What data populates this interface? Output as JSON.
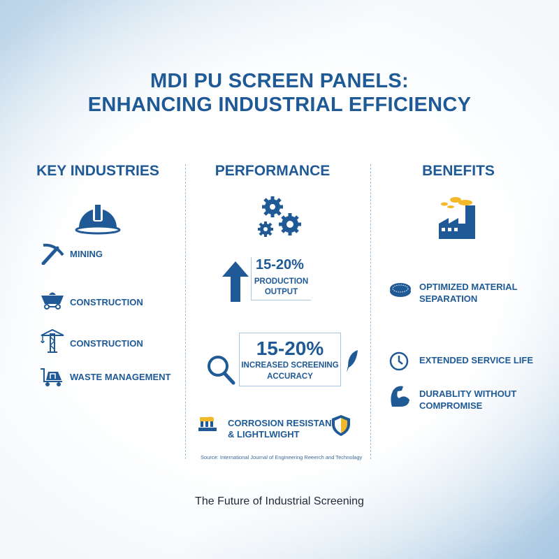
{
  "title": {
    "line1": "MDI PU SCREEN PANELS:",
    "line2": "ENHANCING INDUSTRIAL EFFICIENCY"
  },
  "colors": {
    "primary": "#1f5a96",
    "accent": "#f2b829"
  },
  "columns": {
    "industries": {
      "heading": "KEY INDUSTRIES",
      "header_icon": "hard-hat-icon",
      "items": [
        {
          "label": "MINING",
          "icon": "pickaxe-icon"
        },
        {
          "label": "CONSTRUCTION",
          "icon": "mine-cart-icon"
        },
        {
          "label": "CONSTRUCTION",
          "icon": "crane-icon"
        },
        {
          "label": "WASTE MANAGEMENT",
          "icon": "waste-cart-icon"
        }
      ]
    },
    "performance": {
      "heading": "PERFORMANCE",
      "header_icon": "gears-icon",
      "stat1": {
        "value": "15-20%",
        "line1": "PRODUCTION",
        "line2": "OUTPUT",
        "icon": "arrow-up-icon"
      },
      "stat2": {
        "value": "15-20%",
        "line1": "INCREASED SCREENING",
        "line2": "ACCURACY",
        "icon": "magnifier-icon",
        "side_icon": "feather-icon"
      },
      "feature": {
        "line1": "CORROSION RESISTANT",
        "line2": "& LIGHTLWIGHT",
        "icon": "panel-icon",
        "side_icon": "shield-icon"
      },
      "source": "Source: International Journal of Engineering Reeerch and Technolagy"
    },
    "benefits": {
      "heading": "BENEFITS",
      "header_icon": "factory-icon",
      "items": [
        {
          "line1": "OPTIMIZED MATERIAL",
          "line2": "SEPARATION",
          "icon": "sieve-icon"
        },
        {
          "line1": "EXTENDED SERVICE LIFE",
          "line2": "",
          "icon": "clock-icon"
        },
        {
          "line1": "DURABLITY WITHOUT",
          "line2": "COMPROMISE",
          "icon": "muscle-icon"
        }
      ]
    }
  },
  "footer": "The Future of Industrial Screening"
}
